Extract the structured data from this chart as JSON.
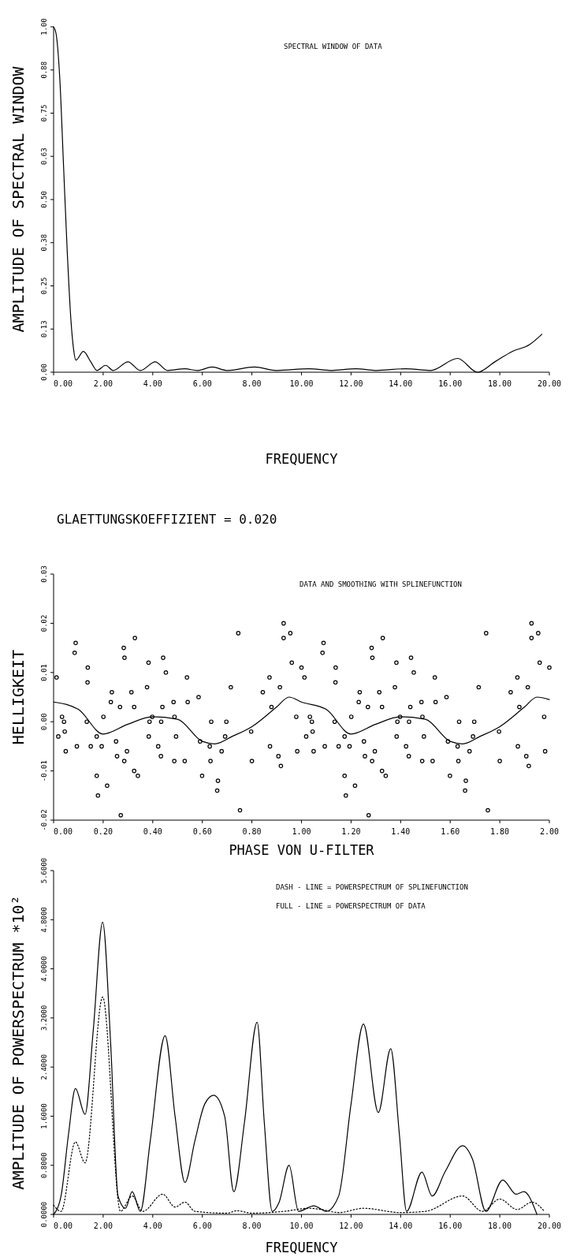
{
  "chart_data": [
    {
      "type": "line",
      "xlabel": "FREQUENCY",
      "ylabel": "AMPLITUDE OF SPECTRAL WINDOW",
      "annotations": [
        "SPECTRAL WINDOW OF DATA"
      ],
      "xlim": [
        0,
        20
      ],
      "ylim": [
        0,
        1
      ],
      "xticks": [
        {
          "value": 0,
          "label": "0.00"
        },
        {
          "value": 2,
          "label": "2.00"
        },
        {
          "value": 4,
          "label": "4.00"
        },
        {
          "value": 6,
          "label": "6.00"
        },
        {
          "value": 8,
          "label": "8.00"
        },
        {
          "value": 10,
          "label": "10.00"
        },
        {
          "value": 12,
          "label": "12.00"
        },
        {
          "value": 14,
          "label": "14.00"
        },
        {
          "value": 16,
          "label": "16.00"
        },
        {
          "value": 18,
          "label": "18.00"
        },
        {
          "value": 20,
          "label": "20.00"
        }
      ],
      "yticks": [
        {
          "value": 0,
          "label": "0.00"
        },
        {
          "value": 0.125,
          "label": "0.13"
        },
        {
          "value": 0.25,
          "label": "0.25"
        },
        {
          "value": 0.375,
          "label": "0.38"
        },
        {
          "value": 0.5,
          "label": "0.50"
        },
        {
          "value": 0.625,
          "label": "0.63"
        },
        {
          "value": 0.75,
          "label": "0.75"
        },
        {
          "value": 0.875,
          "label": "0.88"
        },
        {
          "value": 1,
          "label": "1.00"
        }
      ],
      "series": [
        {
          "color": "#000000",
          "line_style": "solid",
          "x": [
            0,
            0.1,
            0.25,
            0.4,
            0.55,
            0.7,
            0.8,
            0.9,
            1.2,
            1.5,
            1.75,
            2.1,
            2.4,
            3.0,
            3.5,
            4.1,
            4.6,
            5.3,
            5.8,
            6.4,
            7.0,
            8.1,
            9.0,
            10.3,
            11.2,
            12.2,
            13.0,
            14.2,
            15.2,
            16.3,
            17.1,
            17.8,
            18.5,
            19.2,
            19.7
          ],
          "values": [
            1.0,
            0.98,
            0.85,
            0.6,
            0.35,
            0.15,
            0.07,
            0.035,
            0.06,
            0.03,
            0.005,
            0.02,
            0.005,
            0.03,
            0.005,
            0.03,
            0.005,
            0.01,
            0.005,
            0.015,
            0.005,
            0.015,
            0.005,
            0.01,
            0.005,
            0.01,
            0.005,
            0.01,
            0.005,
            0.04,
            0.0,
            0.03,
            0.06,
            0.08,
            0.11
          ]
        }
      ]
    },
    {
      "type": "scatter",
      "title": "GLAETTUNGSKOEFFIZIENT = 0.020",
      "xlabel": "PHASE VON U-FILTER",
      "ylabel": "HELLIGKEIT",
      "annotations": [
        "DATA AND SMOOTHING WITH SPLINEFUNCTION"
      ],
      "xlim": [
        0,
        2
      ],
      "ylim": [
        -0.02,
        0.03
      ],
      "xticks": [
        {
          "value": 0,
          "label": "0.00"
        },
        {
          "value": 0.2,
          "label": "0.20"
        },
        {
          "value": 0.4,
          "label": "0.40"
        },
        {
          "value": 0.6,
          "label": "0.60"
        },
        {
          "value": 0.8,
          "label": "0.80"
        },
        {
          "value": 1,
          "label": "1.00"
        },
        {
          "value": 1.2,
          "label": "1.20"
        },
        {
          "value": 1.4,
          "label": "1.40"
        },
        {
          "value": 1.6,
          "label": "1.60"
        },
        {
          "value": 1.8,
          "label": "1.80"
        },
        {
          "value": 2,
          "label": "2.00"
        }
      ],
      "yticks": [
        {
          "value": -0.02,
          "label": "-0.02"
        },
        {
          "value": -0.01,
          "label": "-0.01"
        },
        {
          "value": 0,
          "label": "0.00"
        },
        {
          "value": 0.01,
          "label": "0.01"
        },
        {
          "value": 0.02,
          "label": "0.02"
        },
        {
          "value": 0.03,
          "label": "0.03"
        }
      ],
      "series": [
        {
          "color": "#000000",
          "marker": "circle",
          "x": [
            0.012,
            0.034,
            0.042,
            0.019,
            0.045,
            0.049,
            0.089,
            0.085,
            0.094,
            0.138,
            0.137,
            0.134,
            0.15,
            0.174,
            0.179,
            0.174,
            0.194,
            0.201,
            0.216,
            0.235,
            0.231,
            0.252,
            0.268,
            0.271,
            0.256,
            0.283,
            0.286,
            0.285,
            0.296,
            0.328,
            0.314,
            0.325,
            0.325,
            0.34,
            0.383,
            0.377,
            0.387,
            0.384,
            0.398,
            0.422,
            0.433,
            0.434,
            0.442,
            0.453,
            0.439,
            0.488,
            0.494,
            0.484,
            0.487,
            0.529,
            0.538,
            0.541,
            0.585,
            0.591,
            0.599,
            0.63,
            0.636,
            0.633,
            0.663,
            0.66,
            0.678,
            0.697,
            0.692,
            0.715,
            0.745,
            0.752,
            0.797,
            0.8,
            0.844,
            0.871,
            0.873,
            0.879,
            0.907,
            0.913,
            0.917,
            0.928,
            0.928,
            0.955,
            0.961,
            0.979,
            0.983,
            1.0,
            1.012,
            1.034,
            1.042,
            1.019,
            1.045,
            1.049,
            1.089,
            1.085,
            1.094,
            1.138,
            1.137,
            1.134,
            1.15,
            1.174,
            1.179,
            1.174,
            1.194,
            1.201,
            1.216,
            1.235,
            1.231,
            1.252,
            1.268,
            1.271,
            1.256,
            1.283,
            1.286,
            1.285,
            1.296,
            1.328,
            1.314,
            1.325,
            1.325,
            1.34,
            1.383,
            1.377,
            1.387,
            1.384,
            1.398,
            1.422,
            1.433,
            1.434,
            1.442,
            1.453,
            1.439,
            1.488,
            1.494,
            1.484,
            1.487,
            1.529,
            1.538,
            1.541,
            1.585,
            1.591,
            1.599,
            1.63,
            1.636,
            1.633,
            1.663,
            1.66,
            1.678,
            1.697,
            1.692,
            1.715,
            1.745,
            1.752,
            1.797,
            1.8,
            1.844,
            1.871,
            1.873,
            1.879,
            1.907,
            1.913,
            1.917,
            1.928,
            1.928,
            1.955,
            1.961,
            1.979,
            1.983,
            2.0
          ],
          "values": [
            0.009,
            0.001,
            0.0,
            -0.003,
            -0.002,
            -0.006,
            0.016,
            0.014,
            -0.005,
            0.011,
            0.008,
            0.0,
            -0.005,
            -0.011,
            -0.015,
            -0.003,
            -0.005,
            0.001,
            -0.013,
            0.006,
            0.004,
            -0.004,
            0.003,
            -0.019,
            -0.007,
            0.015,
            0.013,
            -0.008,
            -0.006,
            0.017,
            0.006,
            0.003,
            -0.01,
            -0.011,
            0.012,
            0.007,
            0.0,
            -0.003,
            0.001,
            -0.005,
            -0.007,
            0.0,
            0.013,
            0.01,
            0.003,
            0.001,
            -0.003,
            0.004,
            -0.008,
            -0.008,
            0.009,
            0.004,
            0.005,
            -0.004,
            -0.011,
            -0.005,
            0.0,
            -0.008,
            -0.012,
            -0.014,
            -0.006,
            0.0,
            -0.003,
            0.007,
            0.018,
            -0.018,
            -0.002,
            -0.008,
            0.006,
            0.009,
            -0.005,
            0.003,
            -0.007,
            0.007,
            -0.009,
            0.02,
            0.017,
            0.018,
            0.012,
            0.001,
            -0.006,
            0.011,
            0.009,
            0.001,
            0.0,
            -0.003,
            -0.002,
            -0.006,
            0.016,
            0.014,
            -0.005,
            0.011,
            0.008,
            0.0,
            -0.005,
            -0.011,
            -0.015,
            -0.003,
            -0.005,
            0.001,
            -0.013,
            0.006,
            0.004,
            -0.004,
            0.003,
            -0.019,
            -0.007,
            0.015,
            0.013,
            -0.008,
            -0.006,
            0.017,
            0.006,
            0.003,
            -0.01,
            -0.011,
            0.012,
            0.007,
            0.0,
            -0.003,
            0.001,
            -0.005,
            -0.007,
            0.0,
            0.013,
            0.01,
            0.003,
            0.001,
            -0.003,
            0.004,
            -0.008,
            -0.008,
            0.009,
            0.004,
            0.005,
            -0.004,
            -0.011,
            -0.005,
            0.0,
            -0.008,
            -0.012,
            -0.014,
            -0.006,
            0.0,
            -0.003,
            0.007,
            0.018,
            -0.018,
            -0.002,
            -0.008,
            0.006,
            0.009,
            -0.005,
            0.003,
            -0.007,
            0.007,
            -0.009,
            0.02,
            0.017,
            0.018,
            0.012,
            0.001,
            -0.006,
            0.011
          ]
        },
        {
          "type": "line",
          "color": "#000000",
          "line_style": "solid",
          "x": [
            0,
            0.1,
            0.2,
            0.3,
            0.4,
            0.5,
            0.6,
            0.65,
            0.72,
            0.8,
            0.9,
            0.95,
            1.0,
            1.1,
            1.2,
            1.3,
            1.4,
            1.5,
            1.6,
            1.65,
            1.72,
            1.8,
            1.9,
            1.95,
            2.0
          ],
          "values": [
            0.004,
            0.0025,
            -0.0025,
            -0.0005,
            0.001,
            0.0005,
            -0.004,
            -0.0045,
            -0.003,
            -0.001,
            0.003,
            0.005,
            0.004,
            0.0025,
            -0.0025,
            -0.0005,
            0.001,
            0.0005,
            -0.004,
            -0.0045,
            -0.003,
            -0.001,
            0.003,
            0.005,
            0.0045
          ]
        }
      ]
    },
    {
      "type": "line",
      "xlabel": "FREQUENCY",
      "ylabel": "AMPLITUDE OF POWERSPECTRUM *10²",
      "annotations": [
        "DASH - LINE = POWERSPECTRUM OF SPLINEFUNCTION",
        "FULL - LINE = POWERSPECTRUM OF DATA"
      ],
      "xlim": [
        0,
        20
      ],
      "ylim": [
        0,
        5.6
      ],
      "xticks": [
        {
          "value": 0,
          "label": "0.00"
        },
        {
          "value": 2,
          "label": "2.00"
        },
        {
          "value": 4,
          "label": "4.00"
        },
        {
          "value": 6,
          "label": "6.00"
        },
        {
          "value": 8,
          "label": "8.00"
        },
        {
          "value": 10,
          "label": "10.00"
        },
        {
          "value": 12,
          "label": "12.00"
        },
        {
          "value": 14,
          "label": "14.00"
        },
        {
          "value": 16,
          "label": "16.00"
        },
        {
          "value": 18,
          "label": "18.00"
        },
        {
          "value": 20,
          "label": "20.00"
        }
      ],
      "yticks": [
        {
          "value": 0,
          "label": "0.0000"
        },
        {
          "value": 0.8,
          "label": "0.8000"
        },
        {
          "value": 1.6,
          "label": "1.6000"
        },
        {
          "value": 2.4,
          "label": "2.4000"
        },
        {
          "value": 3.2,
          "label": "3.2000"
        },
        {
          "value": 4.0,
          "label": "4.0000"
        },
        {
          "value": 4.8,
          "label": "4.8000"
        },
        {
          "value": 5.6,
          "label": "5.6000"
        }
      ],
      "series": [
        {
          "color": "#000000",
          "line_style": "solid",
          "x": [
            0,
            0.3,
            0.6,
            0.88,
            1.27,
            1.6,
            1.98,
            2.3,
            2.6,
            2.9,
            3.17,
            3.5,
            3.9,
            4.5,
            4.9,
            5.3,
            5.7,
            6.1,
            6.46,
            6.9,
            7.27,
            7.7,
            8.21,
            8.5,
            8.82,
            9.1,
            9.5,
            9.88,
            10.5,
            11.0,
            11.5,
            12.0,
            12.5,
            13.1,
            13.6,
            13.95,
            14.24,
            14.86,
            15.27,
            15.8,
            16.5,
            16.9,
            17.44,
            18.12,
            18.66,
            18.97,
            19.5
          ],
          "values": [
            0,
            0.3,
            1.3,
            2.05,
            1.63,
            3.0,
            4.76,
            2.8,
            0.3,
            0.1,
            0.37,
            0.05,
            1.2,
            2.91,
            1.6,
            0.52,
            1.2,
            1.8,
            1.94,
            1.6,
            0.37,
            1.5,
            3.13,
            1.5,
            0.05,
            0.2,
            0.8,
            0.05,
            0.14,
            0.05,
            0.3,
            1.8,
            3.1,
            1.66,
            2.7,
            1.3,
            0.05,
            0.69,
            0.3,
            0.7,
            1.12,
            0.9,
            0.05,
            0.56,
            0.33,
            0.37,
            0
          ]
        },
        {
          "color": "#000000",
          "line_style": "dotted",
          "x": [
            0,
            0.3,
            0.88,
            1.27,
            1.98,
            2.7,
            3.17,
            3.6,
            4.4,
            4.9,
            5.3,
            5.7,
            7.0,
            7.4,
            8.0,
            9.3,
            10.3,
            10.8,
            11.5,
            12.5,
            14.0,
            15.0,
            16.5,
            17.3,
            18.0,
            18.7,
            19.3,
            19.8
          ],
          "values": [
            0.15,
            0.05,
            1.18,
            0.84,
            3.54,
            0.05,
            0.3,
            0.05,
            0.33,
            0.12,
            0.2,
            0.05,
            0.02,
            0.06,
            0.02,
            0.05,
            0.1,
            0.08,
            0.03,
            0.1,
            0.03,
            0.05,
            0.3,
            0.05,
            0.25,
            0.08,
            0.2,
            0.05
          ]
        }
      ]
    }
  ]
}
